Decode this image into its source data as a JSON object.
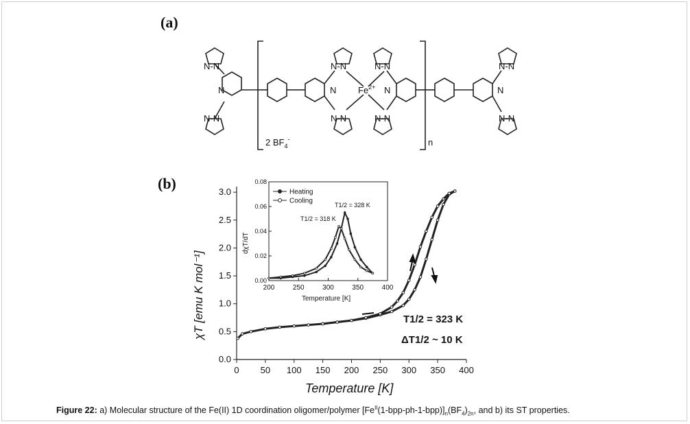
{
  "figure": {
    "panel_a_label": "(a)",
    "panel_b_label": "(b)",
    "molecule": {
      "atom_N": "N",
      "bond_NN": "N-N",
      "bond_NN_inner": "N-N",
      "metal": "Fe",
      "metal_charge": "2+",
      "counterion_prefix": "2 BF",
      "counterion_sub": "4",
      "counterion_sup": "-",
      "repeat_n": "n"
    },
    "caption": {
      "label": "Figure 22:",
      "text_1": " a) Molecular structure of the Fe(II) 1D coordination oligomer/polymer [Fe",
      "sup_1": "II",
      "text_2": "(1-bpp-ph-1-bpp)]",
      "sub_1": "n",
      "text_3": "(BF",
      "sub_2": "4",
      "text_4": ")",
      "sub_3": "2n",
      "text_5": ", and b) its ST properties."
    }
  },
  "chart_data": [
    {
      "type": "line",
      "xlabel": "Temperature [K]",
      "ylabel": "χT [emu K mol⁻¹]",
      "xlim": [
        0,
        400
      ],
      "ylim": [
        0,
        3.1
      ],
      "xticks": [
        "0",
        "50",
        "100",
        "150",
        "200",
        "250",
        "300",
        "350",
        "400"
      ],
      "yticks": [
        "0.0",
        "0.5",
        "1.0",
        "1.5",
        "2.0",
        "2.5",
        "3.0"
      ],
      "series": [
        {
          "name": "Heating",
          "x": [
            2,
            10,
            25,
            50,
            75,
            100,
            125,
            150,
            175,
            200,
            225,
            250,
            270,
            290,
            300,
            310,
            320,
            330,
            340,
            350,
            360,
            370,
            380
          ],
          "y": [
            0.38,
            0.46,
            0.5,
            0.55,
            0.58,
            0.6,
            0.62,
            0.64,
            0.67,
            0.7,
            0.74,
            0.8,
            0.86,
            0.97,
            1.08,
            1.25,
            1.48,
            1.8,
            2.15,
            2.5,
            2.78,
            2.96,
            3.02
          ]
        },
        {
          "name": "Cooling",
          "x": [
            380,
            370,
            360,
            350,
            340,
            330,
            320,
            310,
            300,
            290,
            280,
            270,
            250,
            225,
            200,
            175,
            150
          ],
          "y": [
            3.02,
            2.98,
            2.88,
            2.75,
            2.55,
            2.3,
            2.02,
            1.7,
            1.42,
            1.2,
            1.05,
            0.94,
            0.82,
            0.75,
            0.7,
            0.67,
            0.64
          ]
        }
      ],
      "annotations": [
        "T1/2 = 323 K",
        "ΔT1/2 ~ 10 K"
      ]
    },
    {
      "type": "line",
      "xlabel": "Temperature [K]",
      "ylabel": "dχT/dT",
      "xlim": [
        200,
        400
      ],
      "ylim": [
        0,
        0.08
      ],
      "xticks": [
        "200",
        "250",
        "300",
        "350",
        "400"
      ],
      "yticks": [
        "0.00",
        "0.02",
        "0.04",
        "0.06",
        "0.08"
      ],
      "legend": {
        "placement": "top-left",
        "entries": [
          "Heating",
          "Cooling"
        ]
      },
      "series": [
        {
          "name": "Heating",
          "x": [
            200,
            220,
            240,
            260,
            280,
            295,
            305,
            315,
            322,
            328,
            333,
            338,
            345,
            355,
            365,
            375
          ],
          "y": [
            0.002,
            0.002,
            0.003,
            0.004,
            0.007,
            0.012,
            0.019,
            0.03,
            0.042,
            0.055,
            0.05,
            0.038,
            0.027,
            0.017,
            0.011,
            0.006
          ]
        },
        {
          "name": "Cooling",
          "x": [
            200,
            220,
            240,
            260,
            280,
            295,
            305,
            312,
            318,
            322,
            328,
            335,
            345,
            355,
            365,
            375
          ],
          "y": [
            0.002,
            0.003,
            0.004,
            0.006,
            0.01,
            0.017,
            0.026,
            0.035,
            0.044,
            0.042,
            0.034,
            0.025,
            0.017,
            0.011,
            0.008,
            0.006
          ]
        }
      ],
      "annotations": [
        "T1/2 = 328 K",
        "T1/2 = 318 K"
      ]
    }
  ]
}
